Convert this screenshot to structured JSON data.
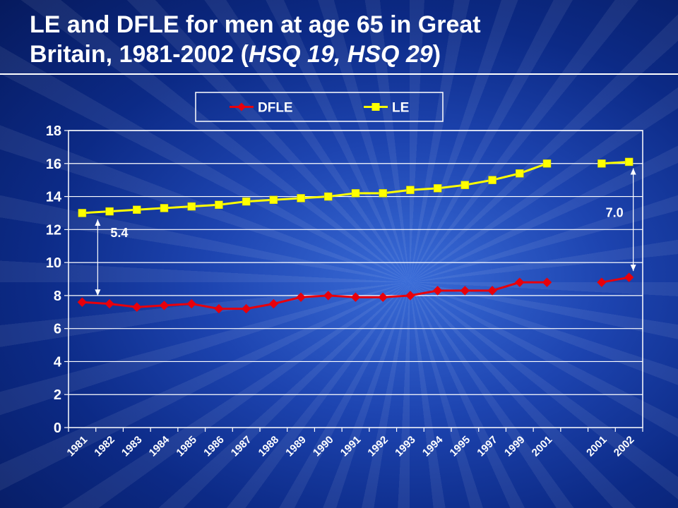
{
  "title": {
    "line1": "LE and DFLE for men at age 65 in Great",
    "line2_prefix": "Britain, 1981-2002 (",
    "line2_italic": "HSQ 19, HSQ 29",
    "line2_suffix": ")"
  },
  "chart_data": {
    "type": "line",
    "categories": [
      "1981",
      "1982",
      "1983",
      "1984",
      "1985",
      "1986",
      "1987",
      "1988",
      "1989",
      "1990",
      "1991",
      "1992",
      "1993",
      "1994",
      "1995",
      "1997",
      "1999",
      "2001",
      "",
      "2001",
      "2002"
    ],
    "series": [
      {
        "name": "DFLE",
        "color": "#e8000b",
        "marker": "diamond",
        "values": [
          7.6,
          7.5,
          7.3,
          7.4,
          7.5,
          7.2,
          7.2,
          7.5,
          7.9,
          8.0,
          7.9,
          7.9,
          8.0,
          8.3,
          8.3,
          8.3,
          8.8,
          8.8,
          null,
          8.8,
          9.1
        ]
      },
      {
        "name": "LE",
        "color": "#ffff00",
        "marker": "square",
        "values": [
          13.0,
          13.1,
          13.2,
          13.3,
          13.4,
          13.5,
          13.7,
          13.8,
          13.9,
          14.0,
          14.2,
          14.2,
          14.4,
          14.5,
          14.7,
          15.0,
          15.4,
          16.0,
          null,
          16.0,
          16.1
        ]
      }
    ],
    "ylim": [
      0,
      18
    ],
    "yticks": [
      0,
      2,
      4,
      6,
      8,
      10,
      12,
      14,
      16,
      18
    ],
    "grid": true,
    "legend_position": "top-center",
    "annotations": [
      {
        "text": "5.4",
        "at_index": 0,
        "from": 7.6,
        "to": 13.0
      },
      {
        "text": "7.0",
        "at_index": 20,
        "from": 9.1,
        "to": 16.1
      }
    ]
  }
}
